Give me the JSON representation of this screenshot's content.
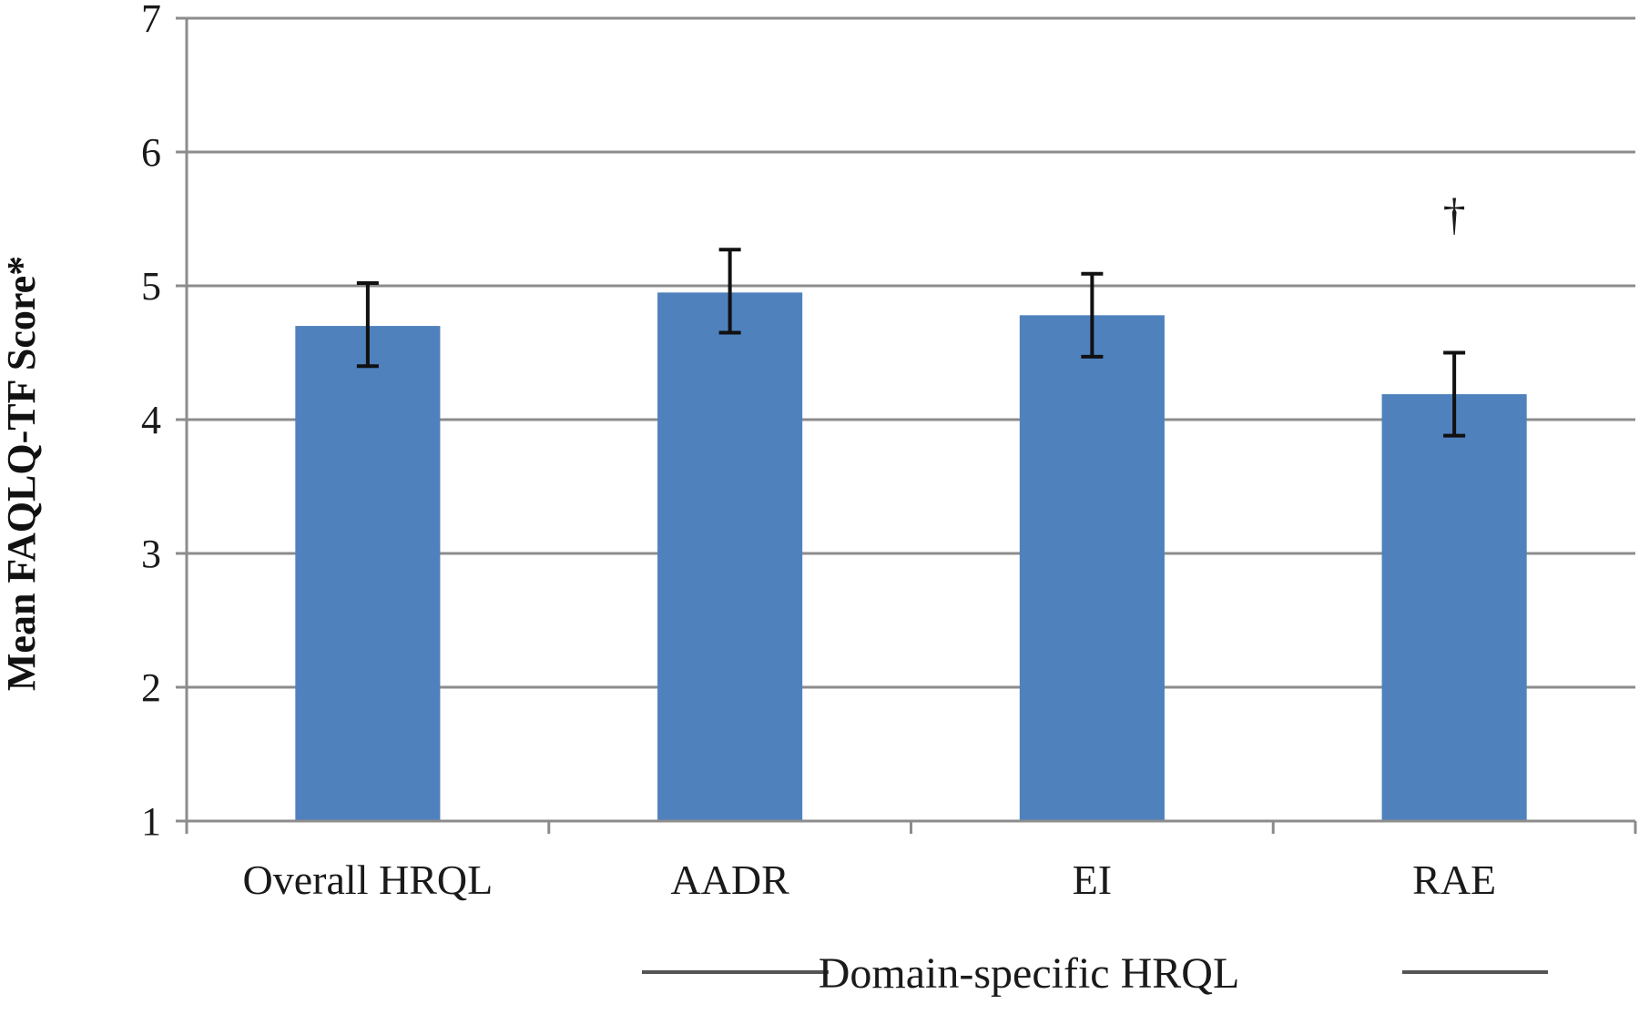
{
  "chart_data": {
    "type": "bar",
    "title": "",
    "xlabel": "",
    "ylabel": "Mean FAQLQ-TF Score*",
    "ylim": [
      1,
      7
    ],
    "yticks": [
      "1",
      "2",
      "3",
      "4",
      "5",
      "6",
      "7"
    ],
    "grid": true,
    "categories": [
      "Overall HRQL",
      "AADR",
      "EI",
      "RAE"
    ],
    "values": [
      4.7,
      4.95,
      4.78,
      4.19
    ],
    "error_low": [
      4.4,
      4.65,
      4.47,
      3.88
    ],
    "error_high": [
      5.02,
      5.27,
      5.09,
      4.5
    ],
    "bar_color": "#4f81bd",
    "annotations": [
      {
        "category": "RAE",
        "text": "†"
      }
    ],
    "group_label": "Domain-specific HRQL"
  }
}
